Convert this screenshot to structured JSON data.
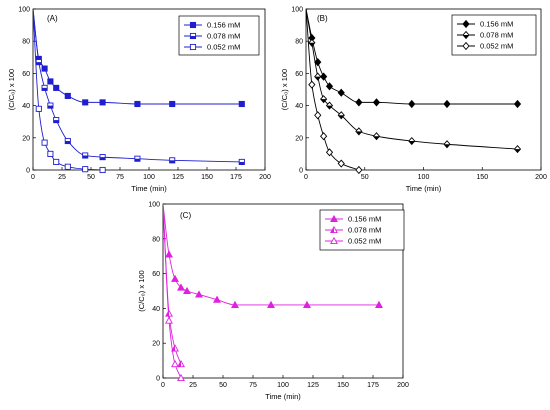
{
  "chart_data": [
    {
      "type": "line",
      "panel_label": "(A)",
      "xlabel": "Time (min)",
      "ylabel": "(C/C₀) x 100",
      "xlim": [
        0,
        200
      ],
      "ylim": [
        0,
        100
      ],
      "xticks": [
        0,
        25,
        50,
        75,
        100,
        125,
        150,
        175,
        200
      ],
      "yticks": [
        0,
        20,
        40,
        60,
        80,
        100
      ],
      "legend_position": "top-right",
      "color": "#1f1fd0",
      "series": [
        {
          "name": "0.156 mM",
          "marker": "square-filled",
          "x": [
            0,
            5,
            10,
            15,
            20,
            30,
            45,
            60,
            90,
            120,
            180
          ],
          "y": [
            100,
            69,
            63,
            55,
            51,
            46,
            42,
            42,
            41,
            41,
            41
          ]
        },
        {
          "name": "0.078 mM",
          "marker": "square-half",
          "x": [
            0,
            5,
            10,
            15,
            20,
            30,
            45,
            60,
            90,
            120,
            180
          ],
          "y": [
            100,
            67,
            51,
            40,
            31,
            18,
            9,
            8,
            7,
            6,
            5
          ]
        },
        {
          "name": "0.052 mM",
          "marker": "square-open",
          "x": [
            0,
            5,
            10,
            15,
            20,
            30,
            45,
            60
          ],
          "y": [
            100,
            38,
            17,
            10,
            5,
            2,
            0.5,
            0
          ]
        }
      ]
    },
    {
      "type": "line",
      "panel_label": "(B)",
      "xlabel": "Time (min)",
      "ylabel": "(C/C₀) x 100",
      "xlim": [
        0,
        200
      ],
      "ylim": [
        0,
        100
      ],
      "xticks": [
        0,
        50,
        100,
        150,
        200
      ],
      "yticks": [
        0,
        20,
        40,
        60,
        80,
        100
      ],
      "legend_position": "top-right",
      "color": "#000000",
      "series": [
        {
          "name": "0.156 mM",
          "marker": "diamond-filled",
          "x": [
            0,
            5,
            10,
            15,
            20,
            30,
            45,
            60,
            90,
            120,
            180
          ],
          "y": [
            100,
            82,
            67,
            58,
            52,
            48,
            42,
            42,
            41,
            41,
            41
          ]
        },
        {
          "name": "0.078 mM",
          "marker": "diamond-half",
          "x": [
            0,
            5,
            10,
            15,
            20,
            30,
            45,
            60,
            90,
            120,
            180
          ],
          "y": [
            100,
            79,
            58,
            44,
            40,
            34,
            24,
            21,
            18,
            16,
            13
          ]
        },
        {
          "name": "0.052 mM",
          "marker": "diamond-open",
          "x": [
            0,
            5,
            10,
            15,
            20,
            30,
            45
          ],
          "y": [
            100,
            53,
            34,
            21,
            11,
            4,
            0
          ]
        }
      ]
    },
    {
      "type": "line",
      "panel_label": "(C)",
      "xlabel": "Time (min)",
      "ylabel": "(C/C₀) x 100",
      "xlim": [
        0,
        200
      ],
      "ylim": [
        0,
        100
      ],
      "xticks": [
        0,
        25,
        50,
        75,
        100,
        125,
        150,
        175,
        200
      ],
      "yticks": [
        0,
        20,
        40,
        60,
        80,
        100
      ],
      "legend_position": "top-right",
      "color": "#e020e0",
      "series": [
        {
          "name": "0.156 mM",
          "marker": "triangle-filled",
          "x": [
            0,
            5,
            10,
            15,
            20,
            30,
            45,
            60,
            90,
            120,
            180
          ],
          "y": [
            100,
            71,
            57,
            52,
            50,
            48,
            45,
            42,
            42,
            42,
            42
          ]
        },
        {
          "name": "0.078 mM",
          "marker": "triangle-half",
          "x": [
            0,
            5,
            10,
            15
          ],
          "y": [
            100,
            37,
            17,
            8
          ]
        },
        {
          "name": "0.052 mM",
          "marker": "triangle-open",
          "x": [
            0,
            5,
            10,
            15
          ],
          "y": [
            100,
            33,
            8,
            0
          ]
        }
      ]
    }
  ]
}
